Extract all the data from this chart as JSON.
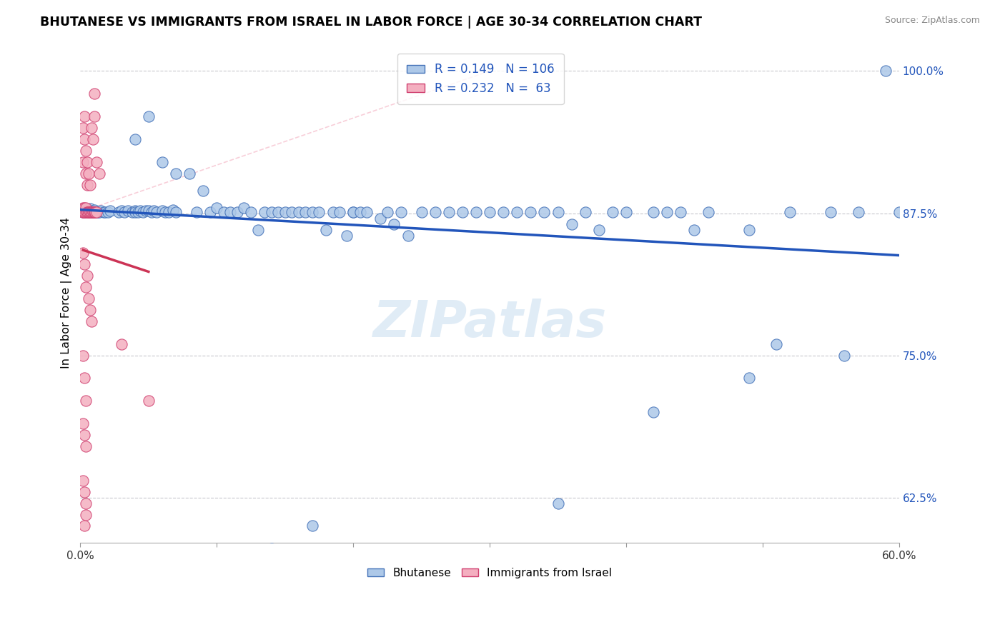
{
  "title": "BHUTANESE VS IMMIGRANTS FROM ISRAEL IN LABOR FORCE | AGE 30-34 CORRELATION CHART",
  "source": "Source: ZipAtlas.com",
  "ylabel": "In Labor Force | Age 30-34",
  "xlim": [
    0.0,
    0.6
  ],
  "ylim": [
    0.585,
    1.025
  ],
  "yticks": [
    0.625,
    0.75,
    0.875,
    1.0
  ],
  "ytick_labels": [
    "62.5%",
    "75.0%",
    "87.5%",
    "100.0%"
  ],
  "xtick_positions": [
    0.0,
    0.1,
    0.2,
    0.3,
    0.4,
    0.5,
    0.6
  ],
  "xtick_labels": [
    "0.0%",
    "",
    "",
    "",
    "",
    "",
    "60.0%"
  ],
  "blue_R": 0.149,
  "blue_N": 106,
  "pink_R": 0.232,
  "pink_N": 63,
  "blue_fill": "#adc8e8",
  "blue_edge": "#4472b8",
  "pink_fill": "#f4afc0",
  "pink_edge": "#d04070",
  "trend_blue": "#2255bb",
  "trend_pink": "#cc3355",
  "diag_color": "#f4afc0",
  "blue_dots": [
    [
      0.002,
      0.876
    ],
    [
      0.003,
      0.876
    ],
    [
      0.004,
      0.878
    ],
    [
      0.005,
      0.877
    ],
    [
      0.006,
      0.878
    ],
    [
      0.007,
      0.876
    ],
    [
      0.007,
      0.879
    ],
    [
      0.008,
      0.876
    ],
    [
      0.009,
      0.877
    ],
    [
      0.01,
      0.876
    ],
    [
      0.01,
      0.878
    ],
    [
      0.011,
      0.876
    ],
    [
      0.012,
      0.876
    ],
    [
      0.013,
      0.876
    ],
    [
      0.014,
      0.876
    ],
    [
      0.015,
      0.877
    ],
    [
      0.017,
      0.876
    ],
    [
      0.018,
      0.876
    ],
    [
      0.02,
      0.876
    ],
    [
      0.022,
      0.877
    ],
    [
      0.028,
      0.876
    ],
    [
      0.03,
      0.877
    ],
    [
      0.032,
      0.876
    ],
    [
      0.035,
      0.877
    ],
    [
      0.038,
      0.876
    ],
    [
      0.04,
      0.877
    ],
    [
      0.04,
      0.876
    ],
    [
      0.042,
      0.876
    ],
    [
      0.044,
      0.877
    ],
    [
      0.046,
      0.876
    ],
    [
      0.048,
      0.877
    ],
    [
      0.05,
      0.877
    ],
    [
      0.052,
      0.876
    ],
    [
      0.054,
      0.877
    ],
    [
      0.056,
      0.876
    ],
    [
      0.06,
      0.877
    ],
    [
      0.062,
      0.876
    ],
    [
      0.065,
      0.876
    ],
    [
      0.068,
      0.878
    ],
    [
      0.07,
      0.876
    ],
    [
      0.04,
      0.94
    ],
    [
      0.05,
      0.96
    ],
    [
      0.06,
      0.92
    ],
    [
      0.07,
      0.91
    ],
    [
      0.08,
      0.91
    ],
    [
      0.085,
      0.876
    ],
    [
      0.09,
      0.895
    ],
    [
      0.095,
      0.876
    ],
    [
      0.1,
      0.88
    ],
    [
      0.105,
      0.876
    ],
    [
      0.11,
      0.876
    ],
    [
      0.115,
      0.876
    ],
    [
      0.12,
      0.88
    ],
    [
      0.125,
      0.876
    ],
    [
      0.13,
      0.86
    ],
    [
      0.135,
      0.876
    ],
    [
      0.14,
      0.876
    ],
    [
      0.145,
      0.876
    ],
    [
      0.15,
      0.876
    ],
    [
      0.155,
      0.876
    ],
    [
      0.16,
      0.876
    ],
    [
      0.165,
      0.876
    ],
    [
      0.17,
      0.876
    ],
    [
      0.175,
      0.876
    ],
    [
      0.18,
      0.86
    ],
    [
      0.185,
      0.876
    ],
    [
      0.19,
      0.876
    ],
    [
      0.195,
      0.855
    ],
    [
      0.2,
      0.876
    ],
    [
      0.2,
      0.876
    ],
    [
      0.205,
      0.876
    ],
    [
      0.21,
      0.876
    ],
    [
      0.22,
      0.87
    ],
    [
      0.225,
      0.876
    ],
    [
      0.23,
      0.865
    ],
    [
      0.235,
      0.876
    ],
    [
      0.24,
      0.855
    ],
    [
      0.25,
      0.876
    ],
    [
      0.26,
      0.876
    ],
    [
      0.27,
      0.876
    ],
    [
      0.28,
      0.876
    ],
    [
      0.29,
      0.876
    ],
    [
      0.3,
      0.876
    ],
    [
      0.31,
      0.876
    ],
    [
      0.32,
      0.876
    ],
    [
      0.33,
      0.876
    ],
    [
      0.34,
      0.876
    ],
    [
      0.35,
      0.876
    ],
    [
      0.36,
      0.865
    ],
    [
      0.37,
      0.876
    ],
    [
      0.38,
      0.86
    ],
    [
      0.39,
      0.876
    ],
    [
      0.4,
      0.876
    ],
    [
      0.42,
      0.876
    ],
    [
      0.43,
      0.876
    ],
    [
      0.44,
      0.876
    ],
    [
      0.45,
      0.86
    ],
    [
      0.46,
      0.876
    ],
    [
      0.49,
      0.86
    ],
    [
      0.52,
      0.876
    ],
    [
      0.55,
      0.876
    ],
    [
      0.56,
      0.75
    ],
    [
      0.57,
      0.876
    ],
    [
      0.59,
      1.0
    ],
    [
      0.6,
      0.876
    ],
    [
      0.14,
      0.58
    ],
    [
      0.17,
      0.6
    ],
    [
      0.35,
      0.62
    ],
    [
      0.42,
      0.7
    ],
    [
      0.49,
      0.73
    ],
    [
      0.51,
      0.76
    ]
  ],
  "pink_dots": [
    [
      0.002,
      0.876
    ],
    [
      0.002,
      0.876
    ],
    [
      0.002,
      0.88
    ],
    [
      0.003,
      0.876
    ],
    [
      0.003,
      0.88
    ],
    [
      0.003,
      0.876
    ],
    [
      0.004,
      0.876
    ],
    [
      0.004,
      0.88
    ],
    [
      0.005,
      0.876
    ],
    [
      0.005,
      0.876
    ],
    [
      0.006,
      0.876
    ],
    [
      0.006,
      0.876
    ],
    [
      0.006,
      0.876
    ],
    [
      0.007,
      0.876
    ],
    [
      0.007,
      0.876
    ],
    [
      0.008,
      0.876
    ],
    [
      0.008,
      0.876
    ],
    [
      0.008,
      0.876
    ],
    [
      0.009,
      0.876
    ],
    [
      0.009,
      0.876
    ],
    [
      0.01,
      0.876
    ],
    [
      0.01,
      0.876
    ],
    [
      0.01,
      0.876
    ],
    [
      0.011,
      0.876
    ],
    [
      0.012,
      0.876
    ],
    [
      0.002,
      0.92
    ],
    [
      0.002,
      0.95
    ],
    [
      0.003,
      0.94
    ],
    [
      0.003,
      0.96
    ],
    [
      0.004,
      0.93
    ],
    [
      0.004,
      0.91
    ],
    [
      0.005,
      0.9
    ],
    [
      0.005,
      0.92
    ],
    [
      0.006,
      0.91
    ],
    [
      0.007,
      0.9
    ],
    [
      0.008,
      0.95
    ],
    [
      0.009,
      0.94
    ],
    [
      0.01,
      0.96
    ],
    [
      0.01,
      0.98
    ],
    [
      0.012,
      0.92
    ],
    [
      0.014,
      0.91
    ],
    [
      0.002,
      0.84
    ],
    [
      0.003,
      0.83
    ],
    [
      0.004,
      0.81
    ],
    [
      0.005,
      0.82
    ],
    [
      0.006,
      0.8
    ],
    [
      0.007,
      0.79
    ],
    [
      0.008,
      0.78
    ],
    [
      0.002,
      0.75
    ],
    [
      0.003,
      0.73
    ],
    [
      0.004,
      0.71
    ],
    [
      0.002,
      0.69
    ],
    [
      0.003,
      0.68
    ],
    [
      0.004,
      0.67
    ],
    [
      0.002,
      0.64
    ],
    [
      0.003,
      0.63
    ],
    [
      0.004,
      0.62
    ],
    [
      0.03,
      0.76
    ],
    [
      0.05,
      0.71
    ],
    [
      0.003,
      0.6
    ],
    [
      0.004,
      0.61
    ]
  ],
  "watermark": "ZIPatlas"
}
